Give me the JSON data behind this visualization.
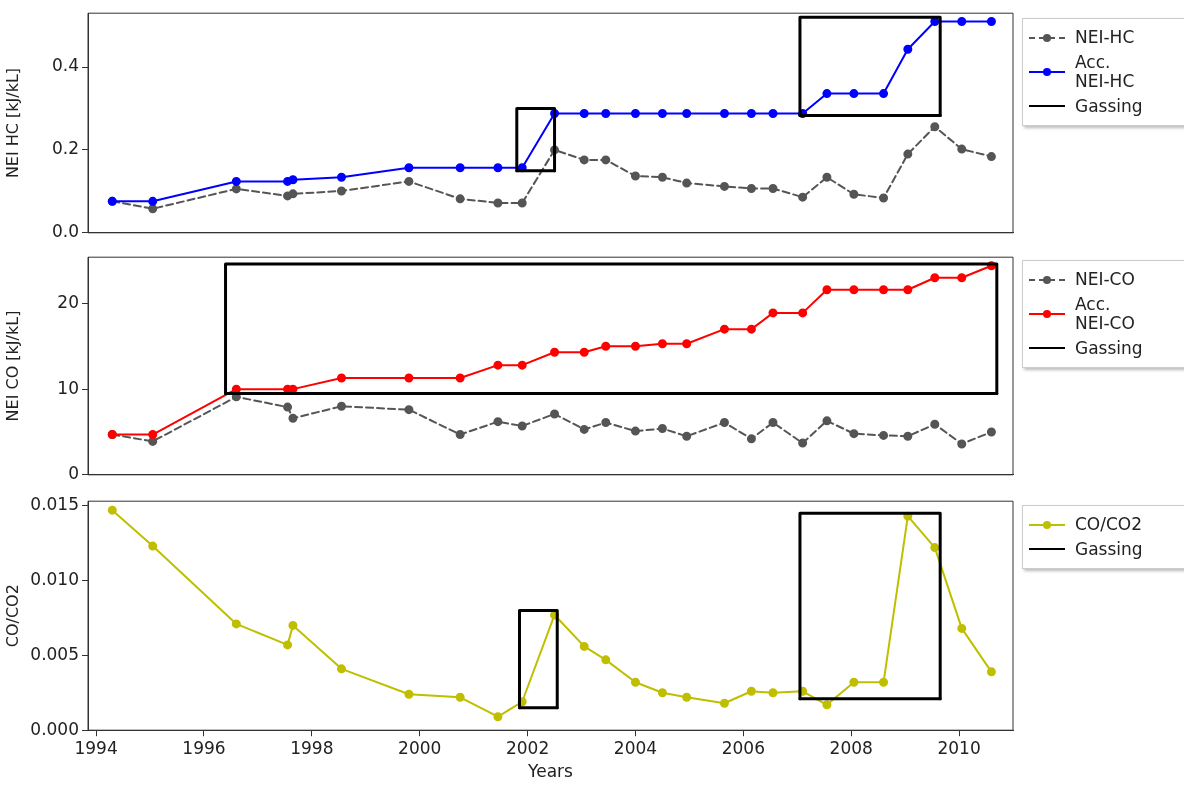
{
  "chart_data": [
    {
      "type": "line",
      "ylabel": "NEI HC [kJ/kL]",
      "x": [
        1994.3,
        1995.05,
        1996.6,
        1997.55,
        1997.65,
        1998.55,
        1999.8,
        2000.75,
        2001.45,
        2001.9,
        2002.5,
        2003.05,
        2003.45,
        2004.0,
        2004.5,
        2004.95,
        2005.65,
        2006.15,
        2006.55,
        2007.1,
        2007.55,
        2008.05,
        2008.6,
        2009.05,
        2009.55,
        2010.05,
        2010.6
      ],
      "xlim": [
        1993.85,
        2011.0
      ],
      "xticks": [
        1994,
        1996,
        1998,
        2000,
        2002,
        2004,
        2006,
        2008,
        2010
      ],
      "ylim": [
        0,
        0.53
      ],
      "yticks": [
        {
          "value": 0,
          "label": "0.0"
        },
        {
          "value": 0.2,
          "label": "0.2"
        },
        {
          "value": 0.4,
          "label": "0.4"
        }
      ],
      "tick_labels": "y",
      "legend": "right",
      "grid": false,
      "series": [
        {
          "name": "NEI-HC",
          "color": "#555555",
          "line_style": "dashed",
          "marker": "circle",
          "values": [
            0.076,
            0.058,
            0.106,
            0.089,
            0.094,
            0.101,
            0.124,
            0.082,
            0.072,
            0.072,
            0.2,
            0.176,
            0.176,
            0.137,
            0.134,
            0.12,
            0.112,
            0.107,
            0.107,
            0.086,
            0.134,
            0.093,
            0.084,
            0.19,
            0.256,
            0.202,
            0.184
          ]
        },
        {
          "name": "Acc. NEI-HC",
          "color": "#0000ff",
          "line_style": "solid",
          "marker": "circle",
          "values": [
            0.076,
            0.076,
            0.124,
            0.124,
            0.128,
            0.134,
            0.157,
            0.157,
            0.157,
            0.157,
            0.288,
            0.288,
            0.288,
            0.288,
            0.288,
            0.288,
            0.288,
            0.288,
            0.288,
            0.288,
            0.336,
            0.336,
            0.336,
            0.443,
            0.51,
            0.51,
            0.51
          ]
        },
        {
          "name": "Gassing",
          "color": "#000000",
          "line_style": "solid",
          "marker": "none",
          "x": [
            2001.8,
            2001.8,
            2002.5,
            2002.5
          ],
          "values": [
            0.15,
            0.3,
            0.3,
            0.15
          ]
        },
        {
          "color": "#000000",
          "line_style": "solid",
          "marker": "none",
          "x": [
            2001.8,
            2002.5
          ],
          "values": [
            0.15,
            0.15
          ]
        },
        {
          "color": "#000000",
          "line_style": "solid",
          "marker": "none",
          "x": [
            2007.05,
            2007.05,
            2009.65,
            2009.65
          ],
          "values": [
            0.283,
            0.52,
            0.52,
            0.283
          ]
        },
        {
          "color": "#000000",
          "line_style": "solid",
          "marker": "none",
          "x": [
            2007.05,
            2009.65
          ],
          "values": [
            0.283,
            0.283
          ]
        }
      ]
    },
    {
      "type": "line",
      "ylabel": "NEI CO [kJ/kL]",
      "x": [
        1994.3,
        1995.05,
        1996.6,
        1997.55,
        1997.65,
        1998.55,
        1999.8,
        2000.75,
        2001.45,
        2001.9,
        2002.5,
        2003.05,
        2003.45,
        2004.0,
        2004.5,
        2004.95,
        2005.65,
        2006.15,
        2006.55,
        2007.1,
        2007.55,
        2008.05,
        2008.6,
        2009.05,
        2009.55,
        2010.05,
        2010.6
      ],
      "xlim": [
        1993.85,
        2011.0
      ],
      "xticks": [
        1994,
        1996,
        1998,
        2000,
        2002,
        2004,
        2006,
        2008,
        2010
      ],
      "ylim": [
        0,
        25.4
      ],
      "yticks": [
        0,
        10,
        20
      ],
      "tick_labels": "y",
      "legend": "right",
      "grid": false,
      "series": [
        {
          "name": "NEI-CO",
          "color": "#555555",
          "line_style": "dashed",
          "marker": "circle",
          "values": [
            4.7,
            3.9,
            9.1,
            7.9,
            6.6,
            8.0,
            7.6,
            4.7,
            6.2,
            5.7,
            7.1,
            5.3,
            6.1,
            5.1,
            5.4,
            4.5,
            6.1,
            4.2,
            6.1,
            3.7,
            6.3,
            4.8,
            4.6,
            4.5,
            5.9,
            3.6,
            5.0
          ]
        },
        {
          "name": "Acc. NEI-CO",
          "color": "#ff0000",
          "line_style": "solid",
          "marker": "circle",
          "values": [
            4.7,
            4.7,
            10.0,
            10.0,
            10.0,
            11.3,
            11.3,
            11.3,
            12.8,
            12.8,
            14.3,
            14.3,
            15.0,
            15.0,
            15.3,
            15.3,
            17.0,
            17.0,
            18.9,
            18.9,
            21.6,
            21.6,
            21.6,
            21.6,
            23.0,
            23.0,
            24.4
          ]
        },
        {
          "name": "Gassing",
          "color": "#000000",
          "line_style": "solid",
          "marker": "none",
          "x": [
            1996.4,
            1996.4,
            2010.7,
            2010.7
          ],
          "values": [
            9.5,
            24.6,
            24.6,
            9.5
          ]
        },
        {
          "color": "#000000",
          "line_style": "solid",
          "marker": "none",
          "x": [
            1996.4,
            2010.7
          ],
          "values": [
            9.5,
            9.5
          ]
        }
      ]
    },
    {
      "type": "line",
      "ylabel": "CO/CO2",
      "xlabel": "Years",
      "x": [
        1994.3,
        1995.05,
        1996.6,
        1997.55,
        1997.65,
        1998.55,
        1999.8,
        2000.75,
        2001.45,
        2001.9,
        2002.5,
        2003.05,
        2003.45,
        2004.0,
        2004.5,
        2004.95,
        2005.65,
        2006.15,
        2006.55,
        2007.1,
        2007.55,
        2008.05,
        2008.6,
        2009.05,
        2009.55,
        2010.05,
        2010.6
      ],
      "xlim": [
        1993.85,
        2011.0
      ],
      "xticks": [
        1994,
        1996,
        1998,
        2000,
        2002,
        2004,
        2006,
        2008,
        2010
      ],
      "ylim": [
        0,
        0.0153
      ],
      "yticks": [
        {
          "value": 0,
          "label": "0.000"
        },
        {
          "value": 0.005,
          "label": "0.005"
        },
        {
          "value": 0.01,
          "label": "0.010"
        },
        {
          "value": 0.015,
          "label": "0.015"
        }
      ],
      "legend": "right",
      "grid": false,
      "series": [
        {
          "name": "CO/CO2",
          "color": "#bfbf00",
          "line_style": "solid",
          "marker": "circle",
          "values": [
            0.0147,
            0.0123,
            0.0071,
            0.0057,
            0.007,
            0.0041,
            0.0024,
            0.0022,
            0.0009,
            0.0019,
            0.0077,
            0.0056,
            0.0047,
            0.0032,
            0.0025,
            0.0022,
            0.0018,
            0.0026,
            0.0025,
            0.0026,
            0.0017,
            0.0032,
            0.0032,
            0.0143,
            0.0122,
            0.0068,
            0.0039
          ]
        },
        {
          "name": "Gassing",
          "color": "#000000",
          "line_style": "solid",
          "marker": "none",
          "x": [
            2001.85,
            2001.85,
            2002.55,
            2002.55
          ],
          "values": [
            0.0015,
            0.008,
            0.008,
            0.0015
          ]
        },
        {
          "color": "#000000",
          "line_style": "solid",
          "marker": "none",
          "x": [
            2001.85,
            2002.55
          ],
          "values": [
            0.0015,
            0.0015
          ]
        },
        {
          "color": "#000000",
          "line_style": "solid",
          "marker": "none",
          "x": [
            2007.05,
            2007.05,
            2009.65,
            2009.65
          ],
          "values": [
            0.0021,
            0.0145,
            0.0145,
            0.0021
          ]
        },
        {
          "color": "#000000",
          "line_style": "solid",
          "marker": "none",
          "x": [
            2007.05,
            2009.65
          ],
          "values": [
            0.0021,
            0.0021
          ]
        }
      ]
    }
  ]
}
